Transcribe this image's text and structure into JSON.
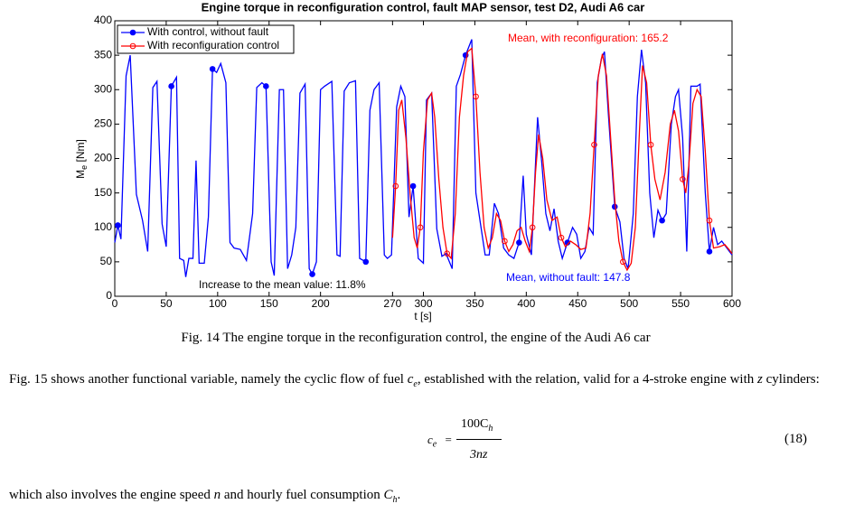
{
  "chart_data": {
    "type": "line",
    "title": "Engine torque in reconfiguration control, fault MAP sensor, test D2, Audi A6 car",
    "xlabel": "t [s]",
    "ylabel": [
      "M",
      "e",
      " [Nm]"
    ],
    "xlim": [
      0,
      600
    ],
    "ylim": [
      0,
      400
    ],
    "xticks": [
      0,
      50,
      100,
      150,
      200,
      270,
      300,
      350,
      400,
      450,
      500,
      550,
      600
    ],
    "yticks": [
      0,
      50,
      100,
      150,
      200,
      250,
      300,
      350,
      400
    ],
    "grid": false,
    "legend": "upper left",
    "annotations": [
      {
        "text": "Mean, with reconfiguration: 165.2",
        "color": "#ff0000"
      },
      {
        "text": "Mean, without fault: 147.8",
        "color": "#0000ff"
      },
      {
        "text": "Increase to the mean value: 11.8%",
        "color": "#000000"
      }
    ],
    "series": [
      {
        "name": "With control, without fault",
        "color": "#0000ff",
        "marker": "filled",
        "x": [
          0,
          3,
          6,
          11,
          15,
          21,
          27,
          32,
          37,
          41,
          46,
          50,
          55,
          60,
          63,
          67,
          69,
          72,
          76,
          79,
          82,
          87,
          91,
          95,
          99,
          103,
          108,
          112,
          116,
          122,
          128,
          134,
          138,
          143,
          147,
          152,
          155,
          160,
          164,
          168,
          172,
          176,
          180,
          185,
          189,
          192,
          196,
          200,
          204,
          211,
          216,
          219,
          223,
          228,
          234,
          238,
          244,
          248,
          252,
          257,
          262,
          265,
          269,
          274,
          278,
          282,
          286,
          290,
          295,
          300,
          303,
          308,
          313,
          318,
          322,
          328,
          332,
          336,
          341,
          347,
          351,
          356,
          360,
          364,
          369,
          373,
          378,
          383,
          388,
          393,
          397,
          400,
          405,
          411,
          415,
          419,
          423,
          427,
          431,
          435,
          440,
          445,
          449,
          453,
          457,
          461,
          465,
          469,
          473,
          476,
          480,
          486,
          491,
          495,
          499,
          504,
          508,
          512,
          516,
          520,
          524,
          528,
          532,
          536,
          541,
          545,
          548,
          552,
          556,
          560,
          566,
          569,
          574,
          578,
          582,
          586,
          590,
          595,
          600
        ],
        "values": [
          78,
          103,
          83,
          320,
          350,
          148,
          110,
          65,
          303,
          312,
          105,
          72,
          305,
          318,
          55,
          52,
          28,
          55,
          55,
          197,
          48,
          48,
          115,
          330,
          325,
          338,
          310,
          78,
          70,
          68,
          52,
          120,
          303,
          310,
          305,
          50,
          30,
          300,
          300,
          40,
          60,
          100,
          295,
          308,
          40,
          32,
          50,
          300,
          305,
          312,
          60,
          58,
          298,
          310,
          313,
          55,
          50,
          270,
          300,
          310,
          60,
          55,
          60,
          275,
          305,
          290,
          115,
          160,
          55,
          48,
          285,
          295,
          98,
          58,
          62,
          40,
          305,
          322,
          350,
          373,
          150,
          100,
          60,
          60,
          135,
          120,
          70,
          60,
          55,
          78,
          175,
          90,
          60,
          260,
          195,
          120,
          95,
          127,
          80,
          55,
          78,
          100,
          90,
          55,
          65,
          100,
          90,
          310,
          345,
          355,
          260,
          130,
          108,
          55,
          40,
          120,
          290,
          358,
          310,
          150,
          85,
          125,
          110,
          120,
          250,
          290,
          300,
          230,
          65,
          305,
          305,
          308,
          150,
          65,
          100,
          75,
          80,
          70,
          60
        ]
      },
      {
        "name": "With reconfiguration control",
        "color": "#ff0000",
        "marker": "open",
        "x": [
          270,
          273,
          276,
          279,
          283,
          287,
          291,
          294,
          297,
          300,
          304,
          308,
          311,
          315,
          319,
          323,
          327,
          331,
          335,
          339,
          343,
          347,
          351,
          355,
          359,
          363,
          367,
          371,
          375,
          379,
          383,
          387,
          391,
          395,
          399,
          403,
          406,
          409,
          412,
          416,
          420,
          425,
          430,
          434,
          438,
          443,
          448,
          453,
          458,
          462,
          466,
          470,
          474,
          478,
          482,
          486,
          490,
          494,
          498,
          502,
          506,
          510,
          513,
          517,
          521,
          525,
          530,
          535,
          540,
          544,
          548,
          552,
          555,
          558,
          562,
          566,
          570,
          574,
          578,
          582,
          588,
          593,
          597,
          600
        ],
        "values": [
          85,
          160,
          270,
          285,
          230,
          150,
          85,
          70,
          100,
          210,
          285,
          295,
          260,
          170,
          100,
          62,
          55,
          120,
          260,
          320,
          355,
          360,
          290,
          180,
          100,
          70,
          85,
          120,
          110,
          80,
          65,
          75,
          95,
          100,
          80,
          65,
          100,
          180,
          235,
          200,
          140,
          110,
          115,
          85,
          72,
          80,
          75,
          68,
          70,
          120,
          220,
          320,
          352,
          320,
          230,
          140,
          80,
          50,
          38,
          48,
          100,
          240,
          335,
          310,
          220,
          170,
          140,
          180,
          250,
          270,
          240,
          170,
          150,
          190,
          280,
          300,
          290,
          210,
          110,
          70,
          72,
          75,
          68,
          62
        ]
      }
    ]
  },
  "caption": "Fig. 14 The engine torque in the reconfiguration control, the engine of the Audi A6 car",
  "paragraph1": [
    "Fig. 15 shows another functional variable, namely the cyclic flow of fuel ",
    "c",
    "e",
    ", established with the relation, valid for a 4-stroke engine with ",
    "z",
    " cylinders:"
  ],
  "equation": {
    "lhs": [
      "c",
      "e"
    ],
    "eq": "=",
    "numerator": [
      "100C",
      "h"
    ],
    "denominator": "3nz",
    "number": "(18)"
  },
  "paragraph2": [
    "which also involves the engine speed ",
    "n",
    " and hourly fuel consumption ",
    "C",
    "h",
    "."
  ]
}
